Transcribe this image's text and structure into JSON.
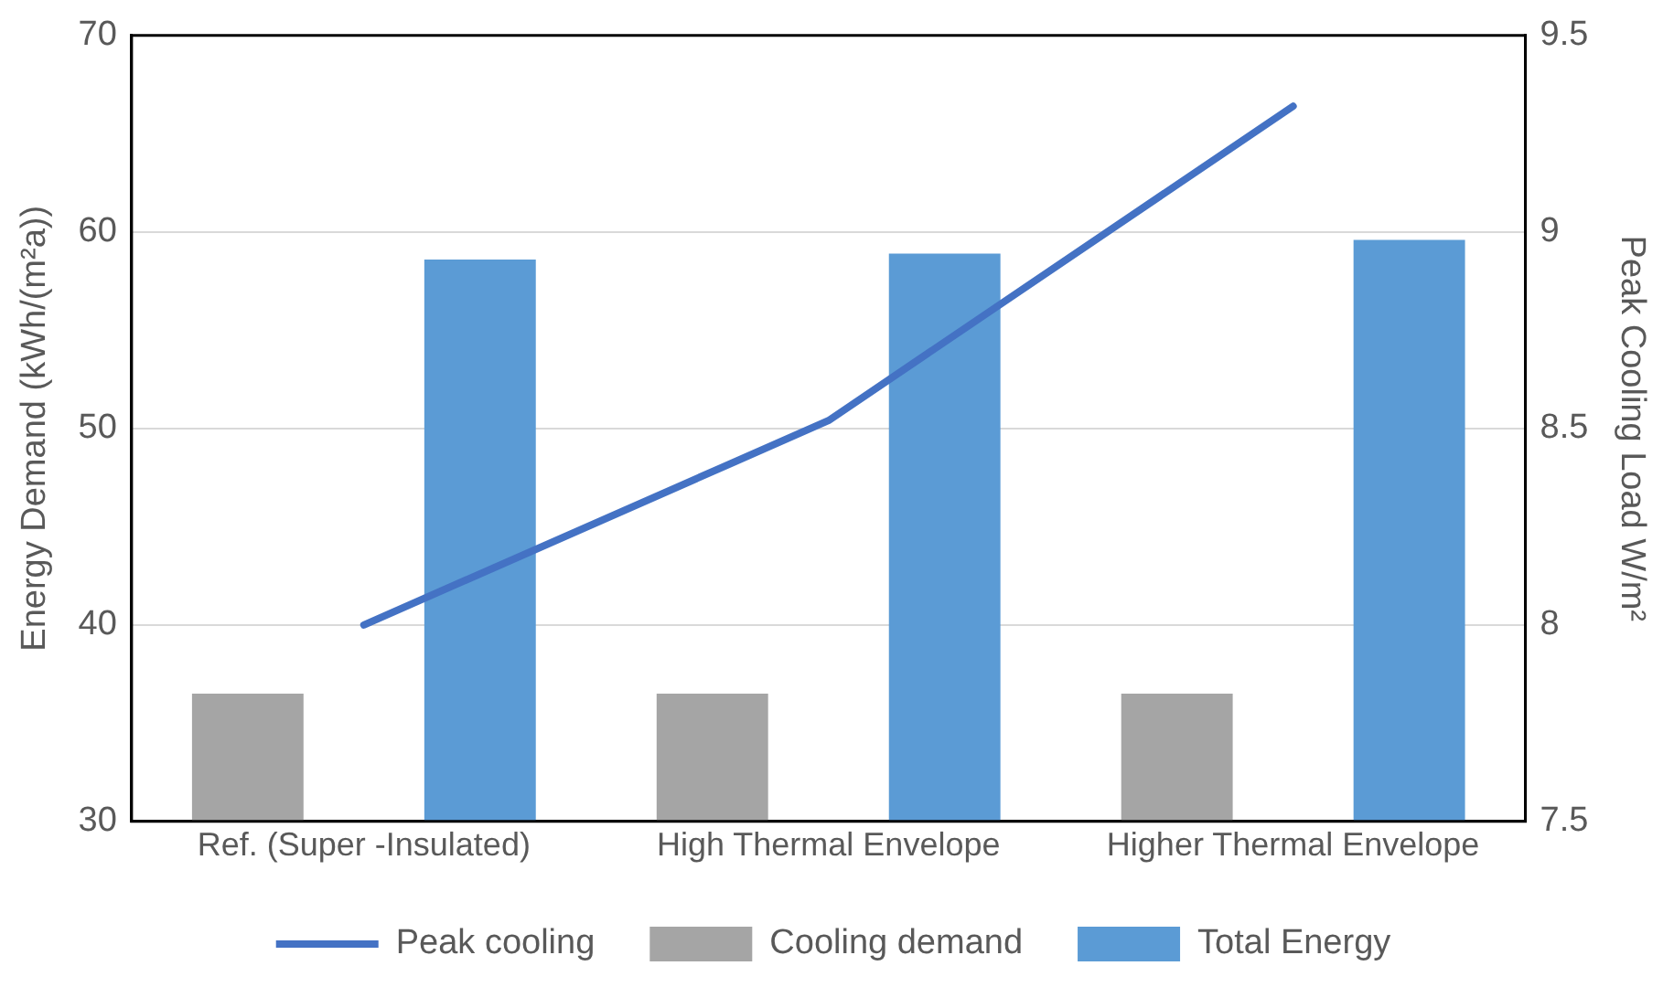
{
  "chart_data": {
    "type": "bar",
    "categories": [
      "Ref. (Super -Insulated)",
      "High Thermal Envelope",
      "Higher Thermal Envelope"
    ],
    "series": [
      {
        "name": "Cooling demand",
        "color": "#a5a5a5",
        "values": [
          36.5,
          36.5,
          36.5
        ]
      },
      {
        "name": "Total Energy",
        "color": "#5b9bd5",
        "values": [
          58.6,
          58.9,
          59.6
        ]
      },
      {
        "name": "Peak cooling",
        "type": "line",
        "axis": "y2",
        "color": "#4472c4",
        "values": [
          8.0,
          8.52,
          9.32
        ],
        "marker": "none",
        "line_style": "solid"
      }
    ],
    "ylabel": "Energy Demand (kWh/(m²a))",
    "y2label": "Peak Cooling Load W/m²",
    "ylim": [
      30,
      70
    ],
    "yticks": [
      30,
      40,
      50,
      60,
      70
    ],
    "y2lim": [
      7.5,
      9.5
    ],
    "y2ticks": [
      7.5,
      8,
      8.5,
      9,
      9.5
    ],
    "grid": "y",
    "legend": "bottom"
  }
}
